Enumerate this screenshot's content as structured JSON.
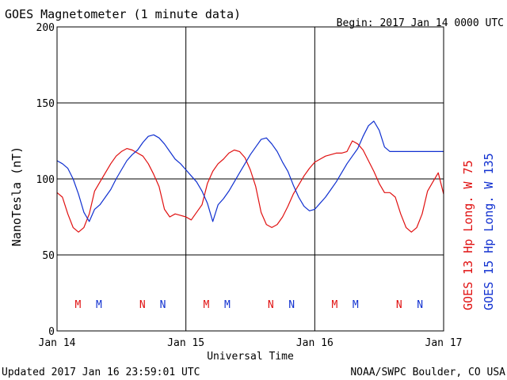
{
  "chart_data": {
    "type": "line",
    "title": "GOES Magnetometer (1 minute data)",
    "begin_label": "Begin:  2017 Jan 14 0000 UTC",
    "xlabel": "Universal Time",
    "ylabel": "NanoTesla (nT)",
    "xlim": [
      0,
      72
    ],
    "ylim": [
      0,
      200
    ],
    "yticks": [
      0,
      50,
      100,
      150,
      200
    ],
    "xticks": [
      {
        "hours": 0,
        "label": "Jan 14"
      },
      {
        "hours": 24,
        "label": "Jan 15"
      },
      {
        "hours": 48,
        "label": "Jan 16"
      },
      {
        "hours": 72,
        "label": "Jan 17"
      }
    ],
    "grid": true,
    "legend": "right",
    "series": [
      {
        "name": "GOES 13 Hp  Long. W 75",
        "color": "#e01010",
        "x": [
          0,
          1,
          2,
          3,
          4,
          5,
          6,
          7,
          8,
          9,
          10,
          11,
          12,
          13,
          14,
          15,
          16,
          17,
          18,
          19,
          20,
          21,
          22,
          23,
          24,
          25,
          26,
          27,
          28,
          29,
          30,
          31,
          32,
          33,
          34,
          35,
          36,
          37,
          38,
          39,
          40,
          41,
          42,
          43,
          44,
          45,
          46,
          47,
          48,
          49,
          50,
          51,
          52,
          53,
          54,
          55,
          56,
          57,
          58,
          59,
          60,
          61,
          62,
          63,
          64,
          65,
          66,
          67,
          68,
          69,
          70,
          71,
          72
        ],
        "values": [
          91,
          88,
          77,
          68,
          65,
          68,
          77,
          92,
          98,
          104,
          110,
          115,
          118,
          120,
          119,
          117,
          115,
          110,
          103,
          95,
          80,
          75,
          77,
          76,
          75,
          73,
          78,
          83,
          97,
          105,
          110,
          113,
          117,
          119,
          118,
          114,
          106,
          95,
          78,
          70,
          68,
          70,
          75,
          82,
          90,
          96,
          102,
          107,
          111,
          113,
          115,
          116,
          117,
          117,
          118,
          125,
          123,
          119,
          112,
          105,
          97,
          91,
          91,
          88,
          77,
          68,
          65,
          68,
          77,
          92,
          98,
          104,
          90
        ]
      },
      {
        "name": "GOES 15 Hp  Long. W 135",
        "color": "#1030d0",
        "x": [
          0,
          1,
          2,
          3,
          4,
          5,
          6,
          7,
          8,
          9,
          10,
          11,
          12,
          13,
          14,
          15,
          16,
          17,
          18,
          19,
          20,
          21,
          22,
          23,
          24,
          25,
          26,
          27,
          28,
          29,
          30,
          31,
          32,
          33,
          34,
          35,
          36,
          37,
          38,
          39,
          40,
          41,
          42,
          43,
          44,
          45,
          46,
          47,
          48,
          49,
          50,
          51,
          52,
          53,
          54,
          55,
          56,
          57,
          58,
          59,
          60,
          61,
          62,
          63,
          64,
          65,
          66,
          67,
          68,
          69,
          70,
          71,
          72
        ],
        "values": [
          112,
          110,
          107,
          100,
          90,
          78,
          72,
          80,
          83,
          88,
          93,
          100,
          106,
          112,
          116,
          119,
          124,
          128,
          129,
          127,
          123,
          118,
          113,
          110,
          106,
          102,
          98,
          92,
          84,
          72,
          83,
          87,
          92,
          98,
          104,
          110,
          116,
          121,
          126,
          127,
          123,
          118,
          111,
          105,
          96,
          88,
          82,
          79,
          80,
          84,
          88,
          93,
          98,
          104,
          110,
          115,
          120,
          128,
          135,
          138,
          132,
          121,
          118,
          118,
          118,
          118,
          118,
          118,
          118,
          118,
          118,
          118,
          118
        ]
      }
    ],
    "markers": [
      {
        "hours": 3.9,
        "label": "M",
        "color": "#e01010"
      },
      {
        "hours": 7.8,
        "label": "M",
        "color": "#1030d0"
      },
      {
        "hours": 15.9,
        "label": "N",
        "color": "#e01010"
      },
      {
        "hours": 19.7,
        "label": "N",
        "color": "#1030d0"
      },
      {
        "hours": 27.8,
        "label": "M",
        "color": "#e01010"
      },
      {
        "hours": 31.7,
        "label": "M",
        "color": "#1030d0"
      },
      {
        "hours": 39.8,
        "label": "N",
        "color": "#e01010"
      },
      {
        "hours": 43.7,
        "label": "N",
        "color": "#1030d0"
      },
      {
        "hours": 51.7,
        "label": "M",
        "color": "#e01010"
      },
      {
        "hours": 55.6,
        "label": "M",
        "color": "#1030d0"
      },
      {
        "hours": 63.7,
        "label": "N",
        "color": "#e01010"
      },
      {
        "hours": 67.6,
        "label": "N",
        "color": "#1030d0"
      }
    ]
  },
  "footer": {
    "updated": "Updated 2017 Jan 16 23:59:01 UTC",
    "credit": "NOAA/SWPC Boulder, CO USA"
  }
}
